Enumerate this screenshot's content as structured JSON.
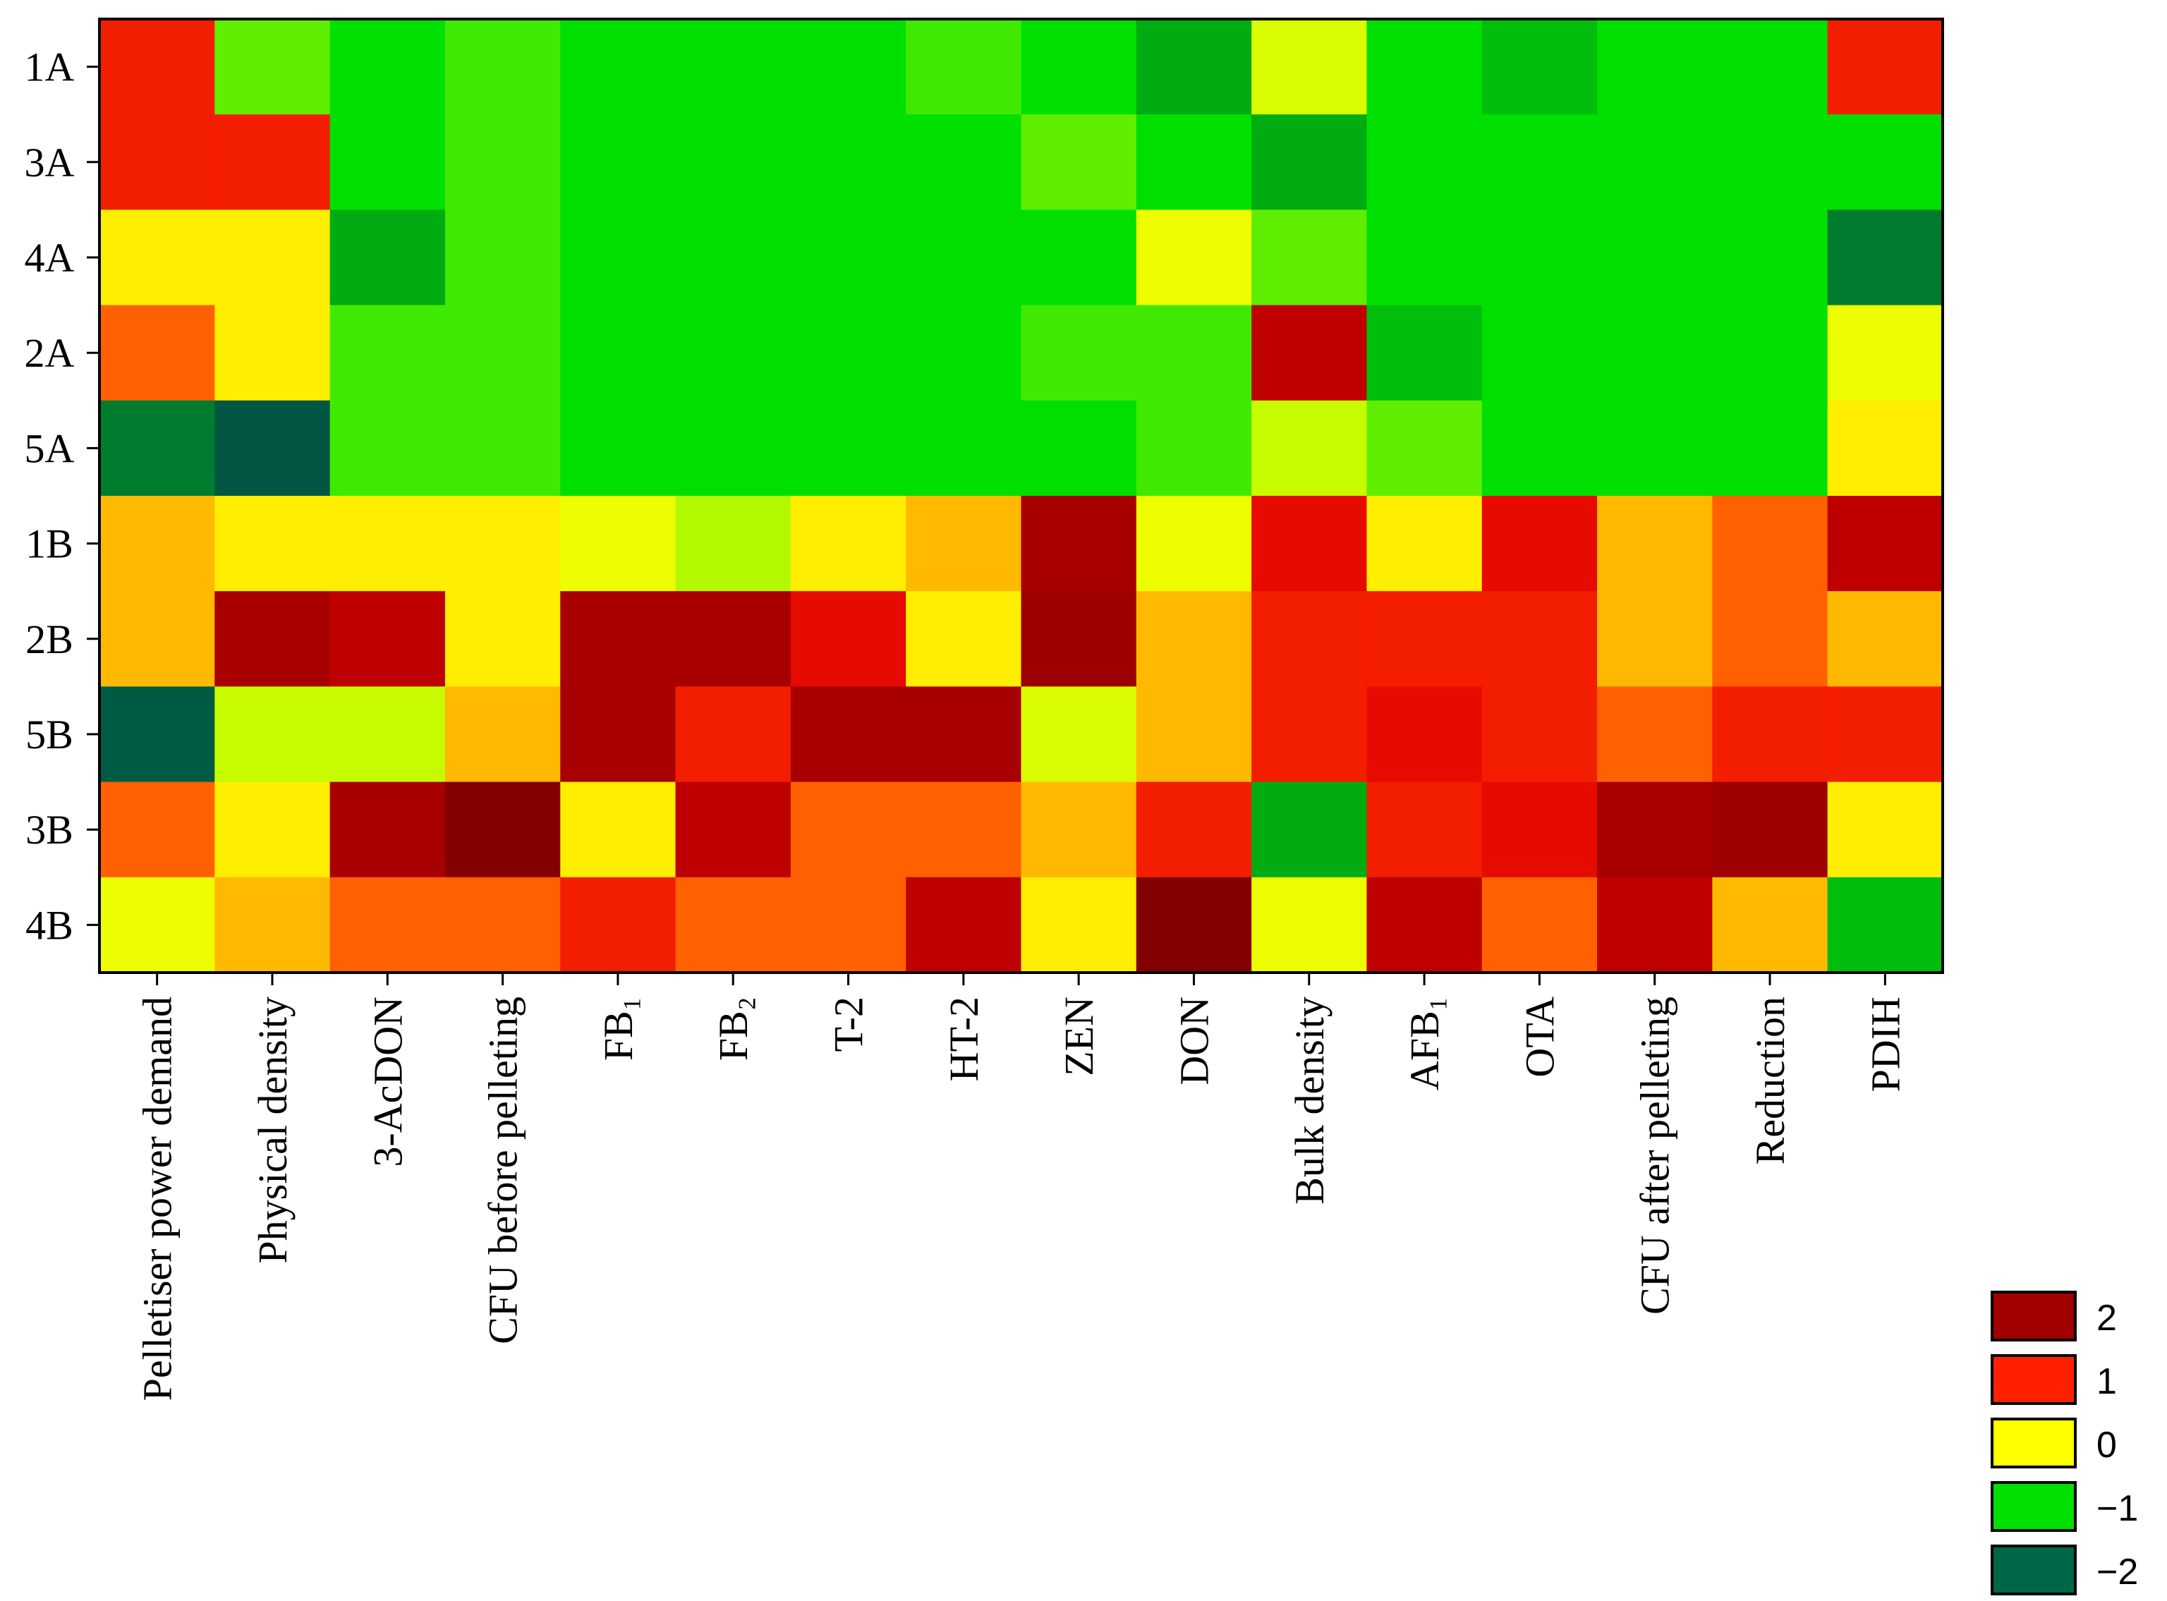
{
  "chart_data": {
    "type": "heatmap",
    "rows": [
      "1A",
      "3A",
      "4A",
      "2A",
      "5A",
      "1B",
      "2B",
      "5B",
      "3B",
      "4B"
    ],
    "columns": [
      "Pelletiser power demand",
      "Physical density",
      "3-AcDON",
      "CFU before pelleting",
      "FB₁",
      "FB₂",
      "T-2",
      "HT-2",
      "ZEN",
      "DON",
      "Bulk density",
      "AFB₁",
      "OTA",
      "CFU after pelleting",
      "Reduction",
      "PDIH"
    ],
    "values": [
      [
        1.2,
        -0.7,
        -1,
        -0.8,
        -1,
        -1,
        -1,
        -0.8,
        -1,
        -1.3,
        -0.2,
        -1,
        -1.2,
        -1,
        -1,
        1.2
      ],
      [
        1.2,
        1.2,
        -1,
        -0.8,
        -1,
        -1,
        -1,
        -1,
        -0.7,
        -1,
        -1.3,
        -1,
        -1,
        -1,
        -1,
        -1
      ],
      [
        0.1,
        0.1,
        -1.3,
        -0.8,
        -1,
        -1,
        -1,
        -1,
        -1,
        -0.1,
        -0.7,
        -1,
        -1,
        -1,
        -1,
        -1.7
      ],
      [
        0.8,
        0.1,
        -0.8,
        -0.8,
        -1,
        -1,
        -1,
        -1,
        -0.8,
        -0.8,
        1.8,
        -1.2,
        -1,
        -1,
        -1,
        -0.1
      ],
      [
        -1.7,
        -2.3,
        -0.8,
        -0.8,
        -1,
        -1,
        -1,
        -1,
        -1,
        -0.8,
        -0.3,
        -0.7,
        -1,
        -1,
        -1,
        0.1
      ],
      [
        0.4,
        0.1,
        0.1,
        0.1,
        -0.1,
        -0.4,
        0.1,
        0.4,
        2.0,
        -0.1,
        1.4,
        0.1,
        1.4,
        0.4,
        0.8,
        1.8
      ],
      [
        0.4,
        2.0,
        1.8,
        0.1,
        2.0,
        2.0,
        1.4,
        0.1,
        2.1,
        0.4,
        1.2,
        1.2,
        1.2,
        0.4,
        0.8,
        0.4
      ],
      [
        -2.2,
        -0.3,
        -0.3,
        0.4,
        2.0,
        1.2,
        2.0,
        2.0,
        -0.2,
        0.4,
        1.2,
        1.4,
        1.2,
        0.8,
        1.2,
        1.2
      ],
      [
        0.8,
        0.1,
        2.0,
        2.4,
        0.1,
        1.8,
        0.8,
        0.8,
        0.4,
        1.2,
        -1.3,
        1.2,
        1.4,
        2.0,
        2.1,
        0.1
      ],
      [
        -0.1,
        0.4,
        0.8,
        0.8,
        1.2,
        0.8,
        0.8,
        1.8,
        0.1,
        2.4,
        -0.1,
        1.8,
        0.8,
        1.8,
        0.4,
        -1.2
      ]
    ],
    "color_stops": [
      [
        -2.5,
        "#004a40"
      ],
      [
        -2,
        "#006648"
      ],
      [
        -1.5,
        "#008a1c"
      ],
      [
        -1,
        "#00e000"
      ],
      [
        -0.5,
        "#a0f800"
      ],
      [
        0,
        "#ffff00"
      ],
      [
        0.5,
        "#ffa800"
      ],
      [
        1,
        "#ff3000"
      ],
      [
        1.5,
        "#e00000"
      ],
      [
        2,
        "#a80000"
      ],
      [
        2.5,
        "#780000"
      ]
    ],
    "legend": {
      "ticks": [
        2,
        1,
        0,
        {
          "value": -1,
          "label": "−1"
        },
        {
          "value": -2,
          "label": "−2"
        }
      ],
      "colors": [
        "#a00000",
        "#ff2000",
        "#ffff00",
        "#00e000",
        "#006648"
      ]
    }
  }
}
